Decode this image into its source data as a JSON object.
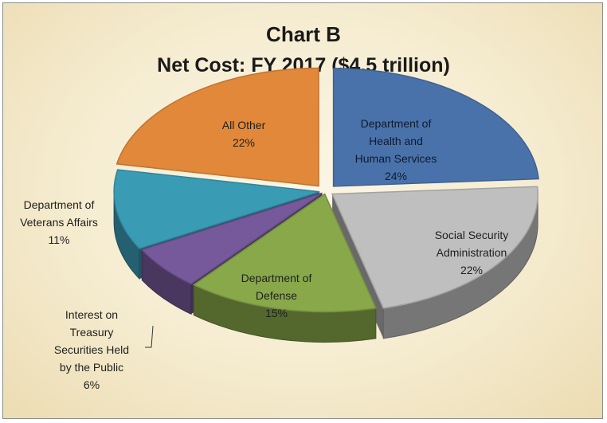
{
  "chart_data": {
    "type": "pie",
    "title": "Chart B",
    "subtitle": "Net Cost: FY 2017 ($4.5 trillion)",
    "slices": [
      {
        "label": [
          "Department of",
          "Health and",
          "Human Services"
        ],
        "value": 24,
        "value_label": "24%",
        "color": "#4a72aa"
      },
      {
        "label": [
          "Social Security",
          "Administration"
        ],
        "value": 22,
        "value_label": "22%",
        "color": "#bfbfbf"
      },
      {
        "label": [
          "Department of",
          "Defense"
        ],
        "value": 15,
        "value_label": "15%",
        "color": "#88a84a"
      },
      {
        "label": [
          "Interest on",
          "Treasury",
          "Securities Held",
          "by the Public"
        ],
        "value": 6,
        "value_label": "6%",
        "color": "#76599b"
      },
      {
        "label": [
          "Department of",
          "Veterans Affairs"
        ],
        "value": 11,
        "value_label": "11%",
        "color": "#3a9bb5"
      },
      {
        "label": [
          "All Other"
        ],
        "value": 22,
        "value_label": "22%",
        "color": "#e2883a"
      }
    ],
    "legend": "none",
    "style": "3d-exploded"
  }
}
